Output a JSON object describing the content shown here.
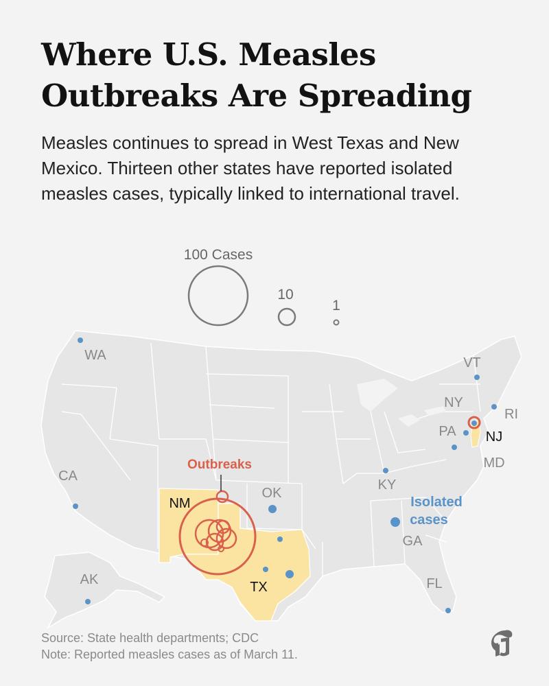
{
  "title": "Where U.S. Measles Outbreaks Are Spreading",
  "subtitle": "Measles continues to spread in West Texas and New Mexico. Thirteen other states have reported isolated measles cases, typically linked to international travel.",
  "legend": {
    "large": "100 Cases",
    "medium": "10",
    "small": "1"
  },
  "annotations": {
    "outbreaks": "Outbreaks",
    "isolated_line1": "Isolated",
    "isolated_line2": "cases"
  },
  "states": {
    "WA": "WA",
    "CA": "CA",
    "AK": "AK",
    "NM": "NM",
    "OK": "OK",
    "TX": "TX",
    "KY": "KY",
    "GA": "GA",
    "FL": "FL",
    "VT": "VT",
    "NY": "NY",
    "RI": "RI",
    "PA": "PA",
    "NJ": "NJ",
    "MD": "MD"
  },
  "outbreak_states": [
    "NM",
    "TX",
    "NJ"
  ],
  "colors": {
    "background": "#f3f3f3",
    "land": "#e6e6e6",
    "outbreak_state": "#fbe3a2",
    "outbreak_circle": "#d9604a",
    "isolated_dot": "#5a93c7",
    "legend_circle": "#7a7a7a"
  },
  "source": "Source: State health departments; CDC",
  "note": "Note: Reported measles cases as of March 11.",
  "logo": "nyt-logo-icon"
}
